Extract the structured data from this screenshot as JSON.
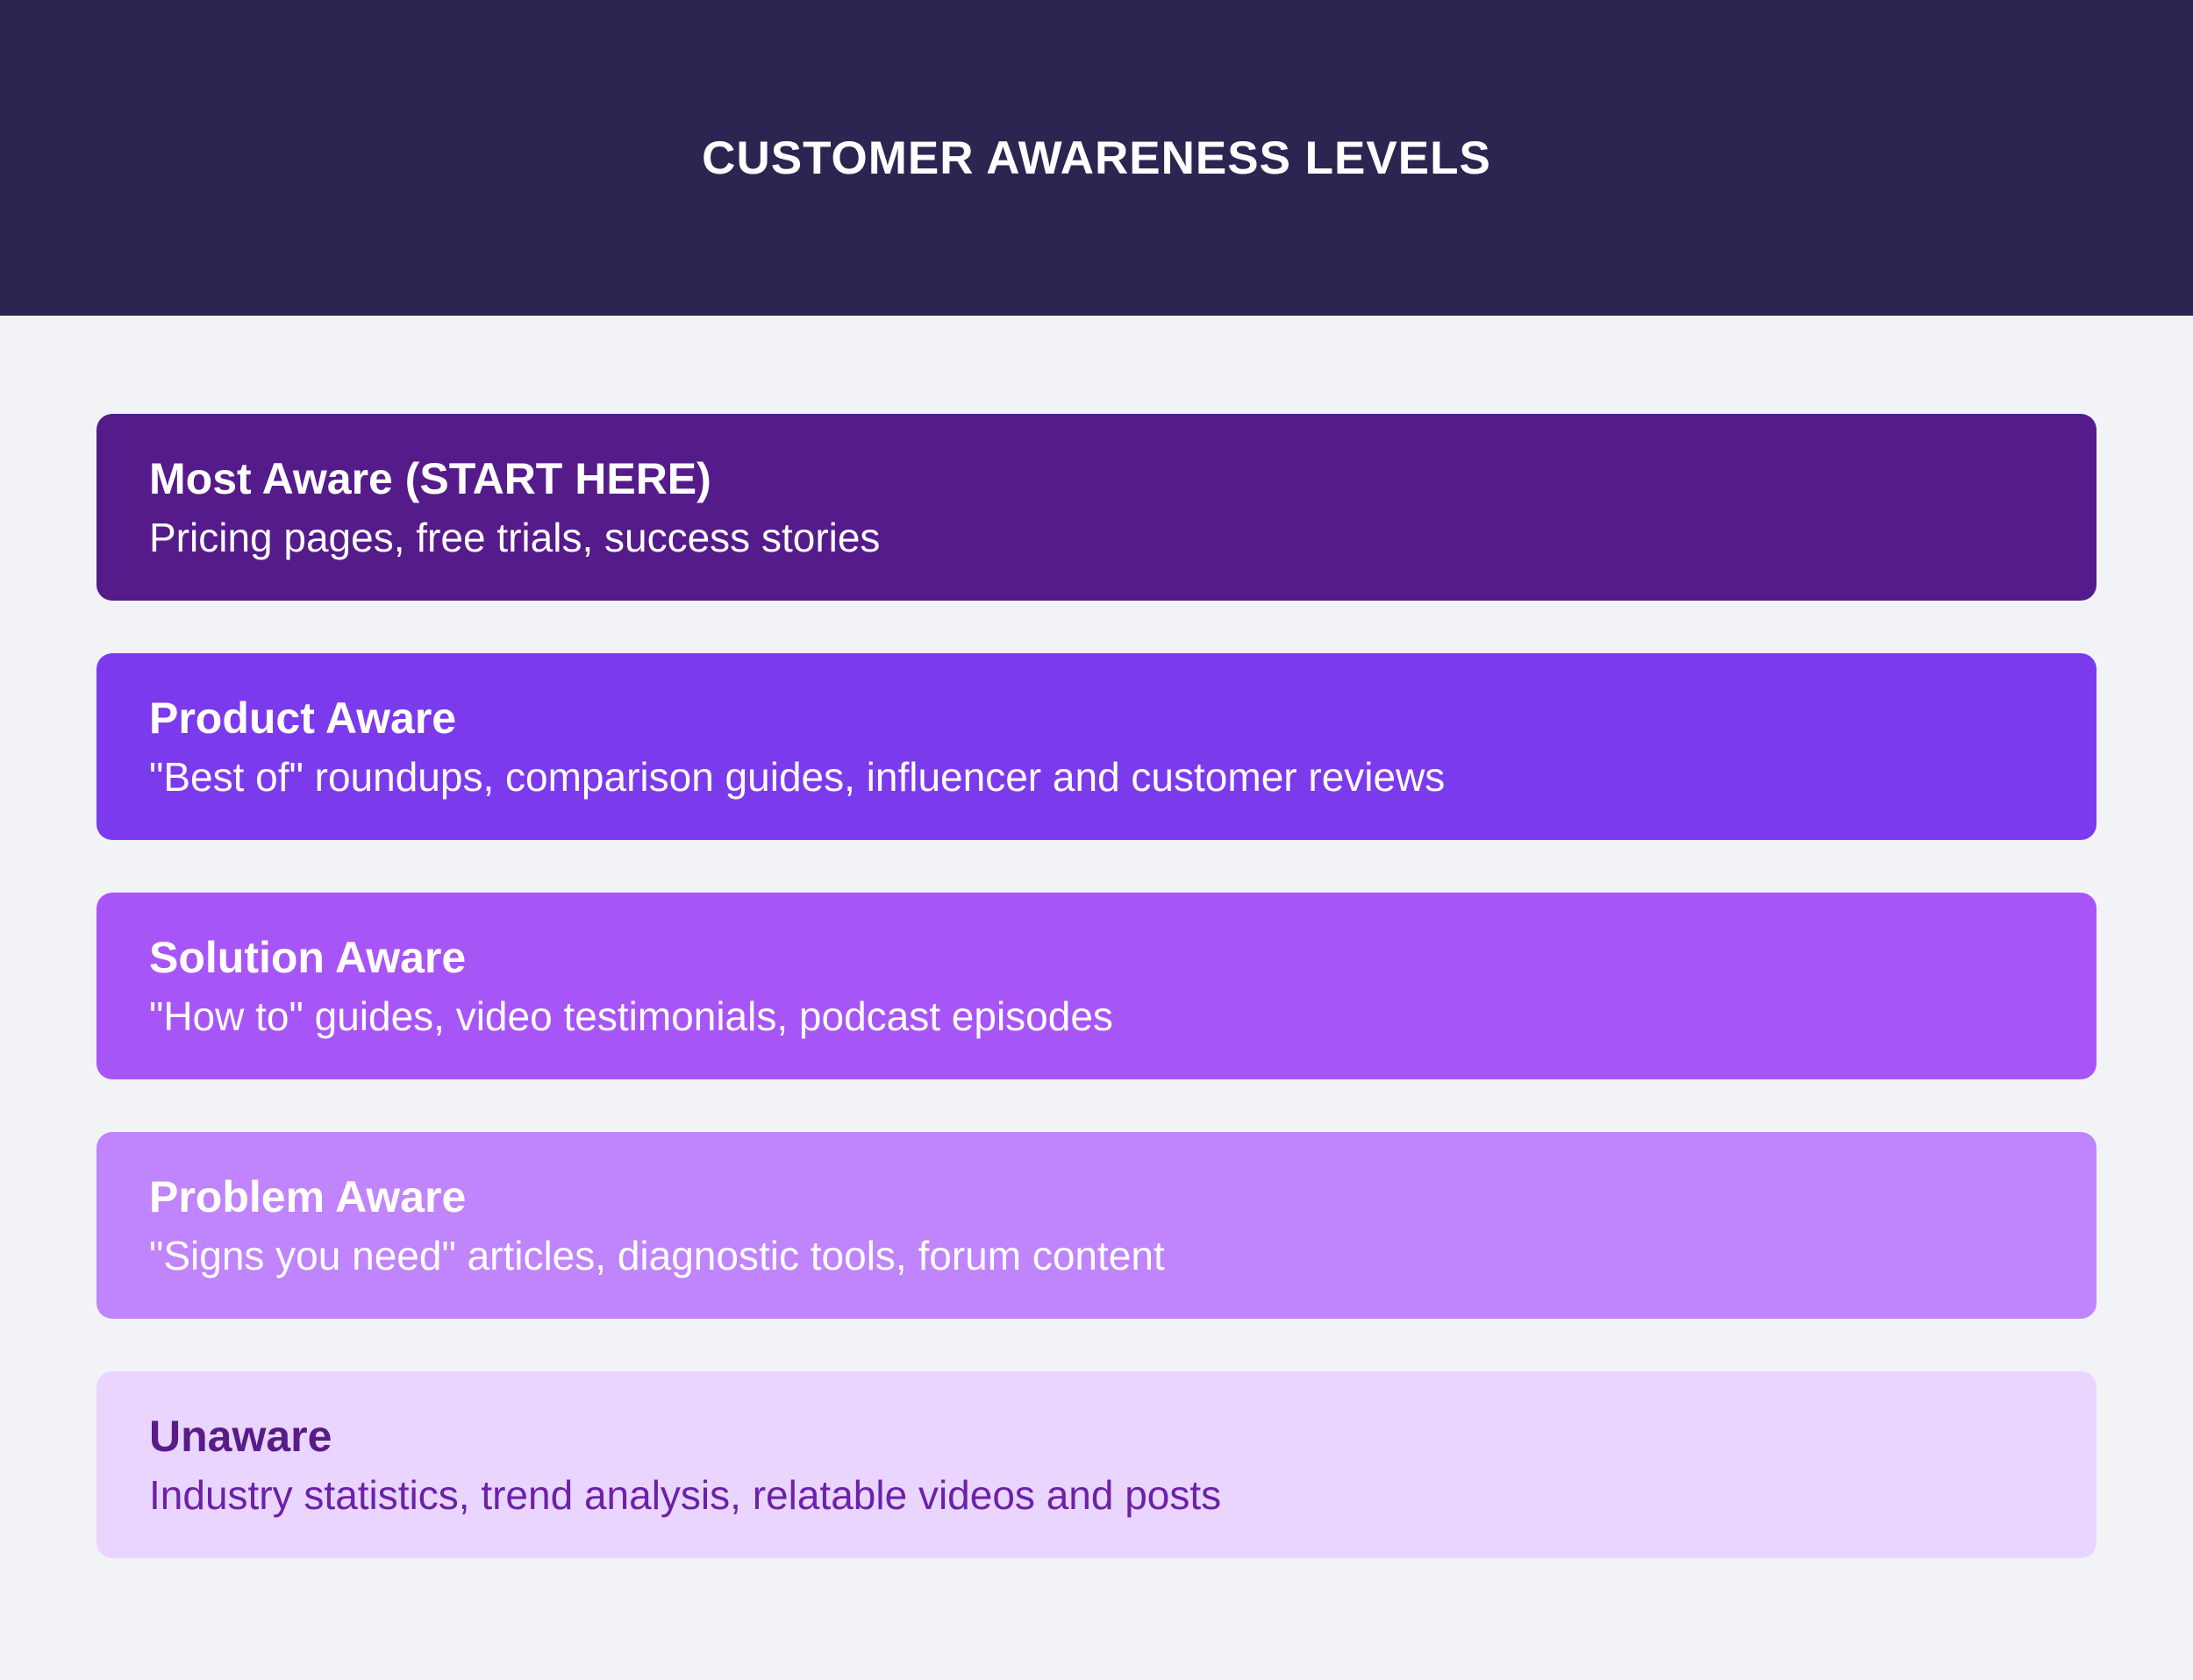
{
  "header": {
    "title": "CUSTOMER AWARENESS LEVELS"
  },
  "colors": {
    "header_bg": "#2E2451",
    "page_bg": "#F1F3F7"
  },
  "levels": [
    {
      "title": "Most Aware (START HERE)",
      "description": "Pricing pages, free trials, success stories",
      "bg": "#551B8A",
      "title_color": "#FFFFFF",
      "desc_color": "#FFFFFF"
    },
    {
      "title": "Product Aware",
      "description": "\"Best of\" roundups, comparison guides, influencer and customer reviews",
      "bg": "#7C3AED",
      "title_color": "#FFFFFF",
      "desc_color": "#FFFFFF"
    },
    {
      "title": "Solution Aware",
      "description": "\"How to\" guides, video testimonials, podcast episodes",
      "bg": "#A855F7",
      "title_color": "#FFFFFF",
      "desc_color": "#FFFFFF"
    },
    {
      "title": "Problem Aware",
      "description": "\"Signs you need\" articles, diagnostic tools, forum content",
      "bg": "#C084FC",
      "title_color": "#FFFFFF",
      "desc_color": "#FFFFFF"
    },
    {
      "title": "Unaware",
      "description": "Industry statistics, trend analysis, relatable videos and posts",
      "bg": "#E9D5FF",
      "title_color": "#581C87",
      "desc_color": "#6B21A8"
    }
  ]
}
